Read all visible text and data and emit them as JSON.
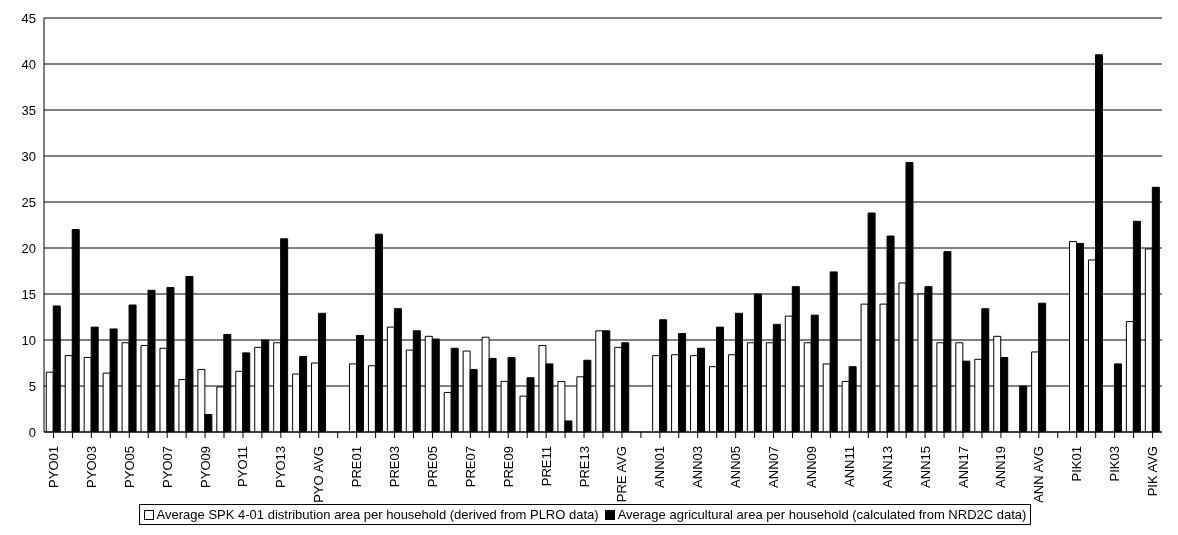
{
  "chart_data": {
    "type": "bar",
    "categories": [
      "PYO01",
      null,
      "PYO03",
      null,
      "PYO05",
      null,
      "PYO07",
      null,
      "PYO09",
      null,
      "PYO11",
      null,
      "PYO13",
      null,
      "PYO AVG",
      null,
      "PRE01",
      null,
      "PRE03",
      null,
      "PRE05",
      null,
      "PRE07",
      null,
      "PRE09",
      null,
      "PRE11",
      null,
      "PRE13",
      null,
      "PRE AVG",
      null,
      "ANN01",
      null,
      "ANN03",
      null,
      "ANN05",
      null,
      "ANN07",
      null,
      "ANN09",
      null,
      "ANN11",
      null,
      "ANN13",
      null,
      "ANN15",
      null,
      "ANN17",
      null,
      "ANN19",
      null,
      "ANN AVG",
      null,
      "PIK01",
      null,
      "PIK03",
      null,
      "PIK AVG"
    ],
    "series": [
      {
        "name": "Average SPK 4-01 distribution area per household (derived from PLRO data)",
        "color": "#ffffff",
        "values": [
          6.5,
          8.3,
          8.1,
          6.4,
          9.7,
          9.4,
          9.1,
          5.7,
          6.8,
          4.9,
          6.6,
          9.2,
          9.7,
          6.3,
          7.5,
          null,
          7.4,
          7.2,
          11.4,
          8.9,
          10.4,
          4.3,
          8.8,
          10.3,
          5.5,
          3.9,
          9.4,
          5.5,
          6.0,
          11.0,
          9.2,
          null,
          8.3,
          8.4,
          8.3,
          7.1,
          8.4,
          9.7,
          9.7,
          12.6,
          9.7,
          7.4,
          5.5,
          13.9,
          13.9,
          16.2,
          15.0,
          9.7,
          9.7,
          7.9,
          10.4,
          null,
          8.7,
          null,
          20.7,
          18.7,
          null,
          12.0,
          19.9
        ]
      },
      {
        "name": "Average agricultural area per household (calculated from NRD2C data)",
        "color": "#000000",
        "values": [
          13.7,
          22.0,
          11.4,
          11.2,
          13.8,
          15.4,
          15.7,
          16.9,
          1.9,
          10.6,
          8.6,
          10.0,
          21.0,
          8.2,
          12.9,
          null,
          10.5,
          21.5,
          13.4,
          11.0,
          10.1,
          9.1,
          6.8,
          8.0,
          8.1,
          5.9,
          7.4,
          1.2,
          7.8,
          11.0,
          9.7,
          null,
          12.2,
          10.7,
          9.1,
          11.4,
          12.9,
          15.0,
          11.7,
          15.8,
          12.7,
          17.4,
          7.1,
          23.8,
          21.3,
          29.3,
          15.8,
          19.6,
          7.7,
          13.4,
          8.1,
          5.0,
          14.0,
          null,
          20.5,
          41.0,
          7.4,
          22.9,
          26.6
        ]
      }
    ],
    "ylim": [
      0,
      45
    ],
    "yticks": [
      0,
      5,
      10,
      15,
      20,
      25,
      30,
      35,
      40,
      45
    ],
    "grid": "y",
    "legend": "bottom"
  }
}
